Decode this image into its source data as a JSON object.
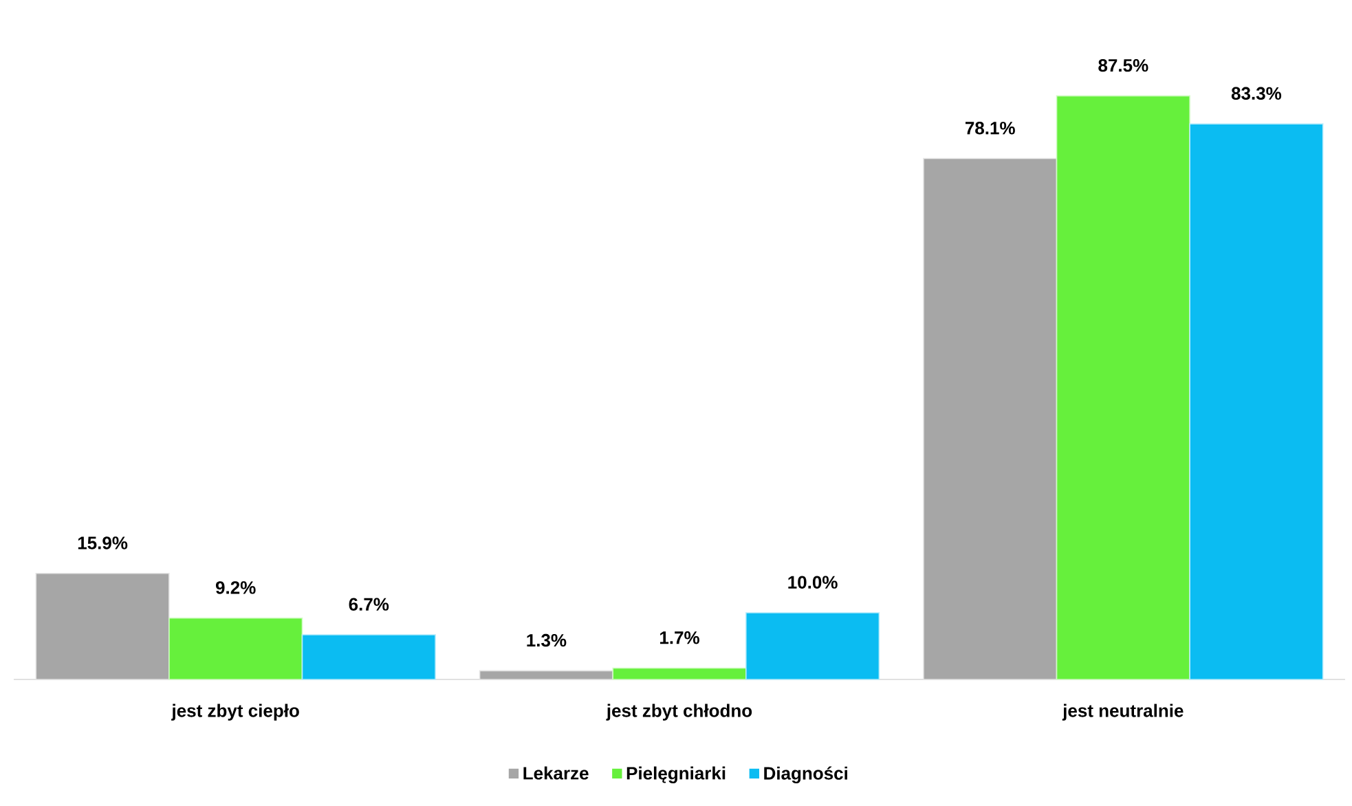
{
  "chart_data": {
    "type": "bar",
    "categories": [
      "jest zbyt ciepło",
      "jest zbyt chłodno",
      "jest neutralnie"
    ],
    "series": [
      {
        "name": "Lekarze",
        "color": "#a6a6a6",
        "values": [
          15.9,
          1.3,
          78.1
        ],
        "value_labels": [
          "15.9%",
          "1.3%",
          "78.1%"
        ]
      },
      {
        "name": "Pielęgniarki",
        "color": "#66f03c",
        "values": [
          9.2,
          1.7,
          87.5
        ],
        "value_labels": [
          "9.2%",
          "1.7%",
          "87.5%"
        ]
      },
      {
        "name": "Diagności",
        "color": "#0bbcf2",
        "values": [
          6.7,
          10.0,
          83.3
        ],
        "value_labels": [
          "6.7%",
          "10.0%",
          "83.3%"
        ]
      }
    ],
    "legend": "bottom"
  }
}
